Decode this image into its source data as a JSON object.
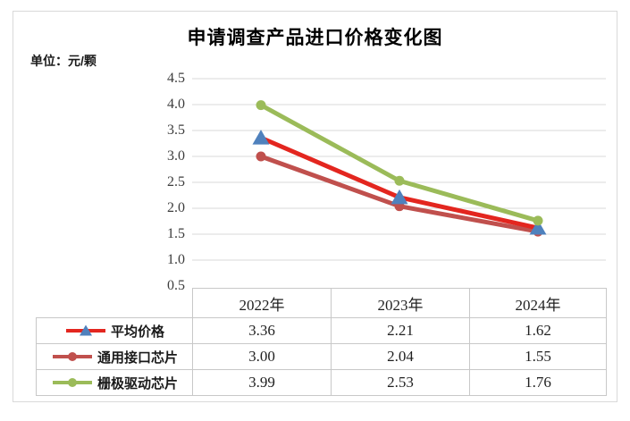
{
  "figure": {
    "title": "申请调查产品进口价格变化图",
    "unit_label": "单位：元/颗"
  },
  "chart_data": {
    "type": "line",
    "title": "申请调查产品进口价格变化图",
    "unit": "元/颗",
    "categories": [
      "2022年",
      "2023年",
      "2024年"
    ],
    "series": [
      {
        "name": "平均价格",
        "slug": "average-price",
        "values": [
          3.36,
          2.21,
          1.62
        ],
        "line_color": "#e3261f",
        "marker": "triangle",
        "marker_color": "#4f81bd"
      },
      {
        "name": "通用接口芯片",
        "slug": "general-interface-chip",
        "values": [
          3.0,
          2.04,
          1.55
        ],
        "line_color": "#c0504d",
        "marker": "circle",
        "marker_color": "#c0504d"
      },
      {
        "name": "栅极驱动芯片",
        "slug": "gate-driver-chip",
        "values": [
          3.99,
          2.53,
          1.76
        ],
        "line_color": "#9bbb59",
        "marker": "circle",
        "marker_color": "#9bbb59"
      }
    ],
    "ylim": [
      0.5,
      4.5
    ],
    "yticks": [
      "4.5",
      "4.0",
      "3.5",
      "3.0",
      "2.5",
      "2.0",
      "1.5",
      "1.0",
      "0.5"
    ],
    "grid": true,
    "legend_position": "table-left",
    "colors": {
      "gridline": "#d9d9d9",
      "table_border": "#c8c8c8",
      "frame_border": "#d9d9d9"
    }
  }
}
